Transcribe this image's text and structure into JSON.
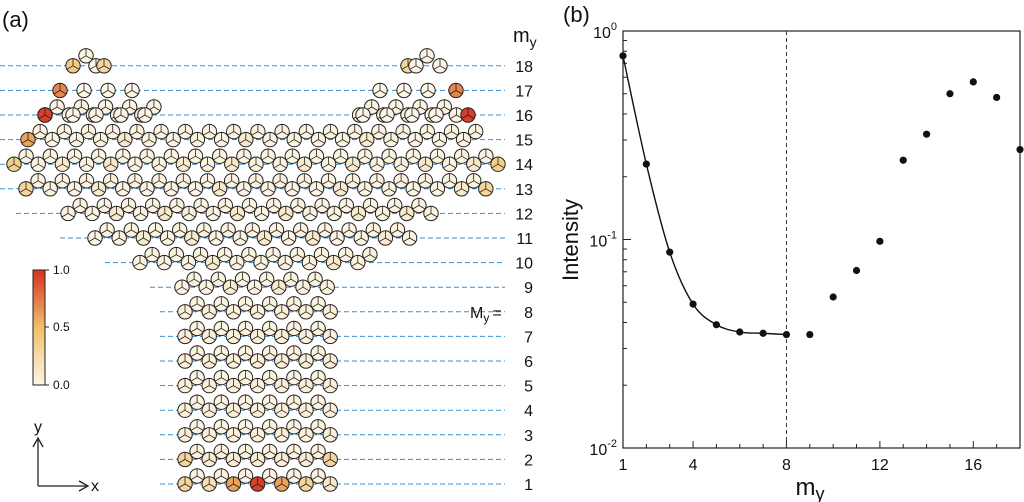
{
  "panel_a": {
    "label": "(a)",
    "row_header": "m",
    "row_header_sub": "y",
    "row_labels": [
      "18",
      "17",
      "16",
      "15",
      "14",
      "13",
      "12",
      "11",
      "10",
      "9",
      "8",
      "7",
      "6",
      "5",
      "4",
      "3",
      "2",
      "1"
    ],
    "marked_row_prefix": "M",
    "marked_row_prefix_sub": "y",
    "marked_row_eq": "=",
    "colorbar_ticks": [
      "1.0",
      "0.5",
      "0.0"
    ],
    "axis_y": "y",
    "axis_x": "x",
    "colors": {
      "low": "#fdf5e6",
      "mid": "#f0c06a",
      "high": "#d7301f",
      "guide": "#3a8fd0"
    }
  },
  "panel_b": {
    "label": "(b)",
    "chart_data": {
      "type": "scatter",
      "xlabel": "m",
      "xlabel_sub": "y",
      "ylabel": "Intensity",
      "xlim": [
        1,
        18
      ],
      "xticks": [
        1,
        4,
        8,
        12,
        16
      ],
      "yscale": "log",
      "ylim": [
        0.01,
        1
      ],
      "yticks": [
        {
          "value": 1,
          "base": "10",
          "exp": "0"
        },
        {
          "value": 0.1,
          "base": "10",
          "exp": "-1"
        },
        {
          "value": 0.01,
          "base": "10",
          "exp": "-2"
        }
      ],
      "x": [
        1,
        2,
        3,
        4,
        5,
        6,
        7,
        8,
        9,
        10,
        11,
        12,
        13,
        14,
        15,
        16,
        17,
        18
      ],
      "y": [
        0.76,
        0.23,
        0.087,
        0.049,
        0.039,
        0.036,
        0.0355,
        0.035,
        0.035,
        0.053,
        0.071,
        0.098,
        0.24,
        0.32,
        0.5,
        0.57,
        0.48,
        0.27
      ],
      "line_x": [
        1,
        2,
        3,
        4,
        5,
        6,
        7,
        8
      ],
      "line_y": [
        0.76,
        0.23,
        0.087,
        0.049,
        0.039,
        0.036,
        0.0355,
        0.035
      ],
      "vline_x": 8
    }
  }
}
